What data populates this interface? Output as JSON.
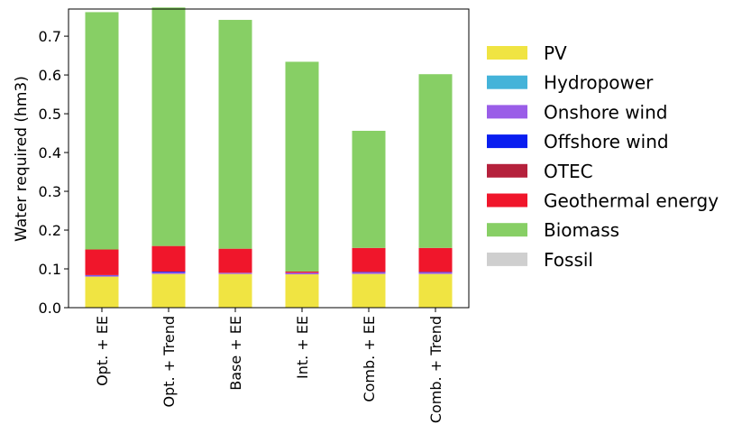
{
  "chart_data": {
    "type": "bar",
    "stacked": true,
    "title": "",
    "xlabel": "",
    "ylabel": "Water required (hm3)",
    "ylim": [
      0,
      0.77
    ],
    "yticks": [
      "0.0",
      "0.1",
      "0.2",
      "0.3",
      "0.4",
      "0.5",
      "0.6",
      "0.7"
    ],
    "legend_position": "right",
    "categories": [
      "Opt. + EE",
      "Opt. + Trend",
      "Base + EE",
      "Int. + EE",
      "Comb. + EE",
      "Comb. + Trend"
    ],
    "series": [
      {
        "name": "PV",
        "color": "#f0e442",
        "values": [
          0.08,
          0.087,
          0.087,
          0.086,
          0.087,
          0.087
        ]
      },
      {
        "name": "Hydropower",
        "color": "#44b3d9",
        "values": [
          0.0,
          0.0,
          0.0,
          0.0,
          0.0,
          0.0
        ]
      },
      {
        "name": "Onshore wind",
        "color": "#9a5de8",
        "values": [
          0.003,
          0.004,
          0.003,
          0.004,
          0.004,
          0.004
        ]
      },
      {
        "name": "Offshore wind",
        "color": "#0a1ef0",
        "values": [
          0.001,
          0.002,
          0.0,
          0.0,
          0.001,
          0.001
        ]
      },
      {
        "name": "OTEC",
        "color": "#b5213c",
        "values": [
          0.0,
          0.0,
          0.0,
          0.0,
          0.0,
          0.0
        ]
      },
      {
        "name": "Geothermal energy",
        "color": "#f0162b",
        "values": [
          0.066,
          0.066,
          0.062,
          0.003,
          0.062,
          0.062
        ]
      },
      {
        "name": "Biomass",
        "color": "#87cf65",
        "values": [
          0.612,
          0.615,
          0.59,
          0.541,
          0.302,
          0.448
        ]
      },
      {
        "name": "Fossil",
        "color": "#cfcfcf",
        "values": [
          0.0,
          0.0,
          0.0,
          0.0,
          0.0,
          0.0
        ]
      }
    ]
  }
}
